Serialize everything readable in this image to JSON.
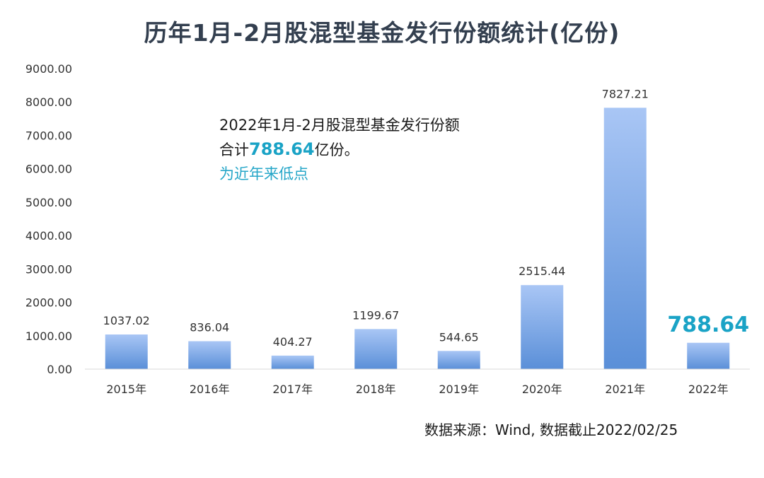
{
  "title": "历年1月-2月股混型基金发行份额统计(亿份)",
  "note": {
    "line1": "2022年1月-2月股混型基金发行份额",
    "line2_prefix": "合计",
    "line2_value": "788.64",
    "line2_suffix": "亿份。",
    "line3": "为近年来低点"
  },
  "source": "数据来源：Wind, 数据截止2022/02/25",
  "colors": {
    "bar_top": "#a9c6f5",
    "bar_bottom": "#5a8fd8",
    "highlight": "#1aa3c6",
    "axis": "#d9d9d9"
  },
  "chart_data": {
    "type": "bar",
    "title": "历年1月-2月股混型基金发行份额统计(亿份)",
    "categories": [
      "2015年",
      "2016年",
      "2017年",
      "2018年",
      "2019年",
      "2020年",
      "2021年",
      "2022年"
    ],
    "values": [
      1037.02,
      836.04,
      404.27,
      1199.67,
      544.65,
      2515.44,
      7827.21,
      788.64
    ],
    "value_labels": [
      "1037.02",
      "836.04",
      "404.27",
      "1199.67",
      "544.65",
      "2515.44",
      "7827.21",
      "788.64"
    ],
    "highlight_index": 7,
    "ylim": [
      0,
      9000
    ],
    "yticks": [
      "0.00",
      "1000.00",
      "2000.00",
      "3000.00",
      "4000.00",
      "5000.00",
      "6000.00",
      "7000.00",
      "8000.00",
      "9000.00"
    ],
    "ytick_values": [
      0,
      1000,
      2000,
      3000,
      4000,
      5000,
      6000,
      7000,
      8000,
      9000
    ],
    "grid": false,
    "legend": "none",
    "xlabel": "",
    "ylabel": ""
  }
}
